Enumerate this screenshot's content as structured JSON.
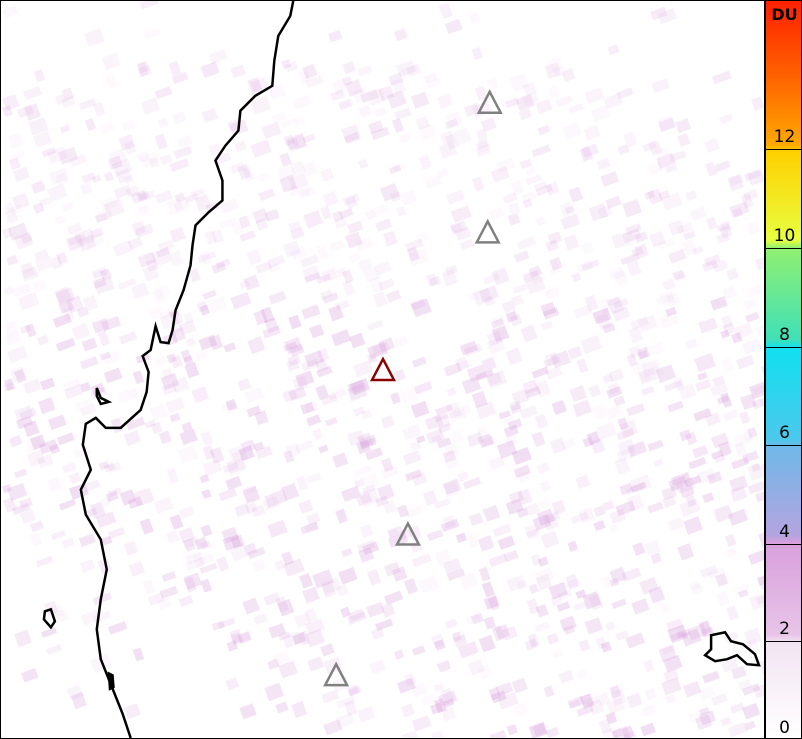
{
  "map": {
    "markers": [
      {
        "type": "volcano",
        "color": "#808080"
      },
      {
        "type": "volcano",
        "color": "#808080"
      },
      {
        "type": "volcano",
        "color": "#8b0000",
        "highlighted": true
      },
      {
        "type": "volcano",
        "color": "#808080"
      },
      {
        "type": "volcano",
        "color": "#808080"
      }
    ],
    "coastline_color": "#000000",
    "field_color": "#d8a0dc"
  },
  "colorbar": {
    "unit": "DU",
    "ticks": [
      "0",
      "2",
      "4",
      "6",
      "8",
      "10",
      "12"
    ],
    "range": [
      0,
      14.9
    ],
    "colors": [
      "#ffffff",
      "#e8c4e8",
      "#d8a0dc",
      "#70b8e8",
      "#10e0f0",
      "#90f070",
      "#ffd000",
      "#ff2000"
    ]
  }
}
